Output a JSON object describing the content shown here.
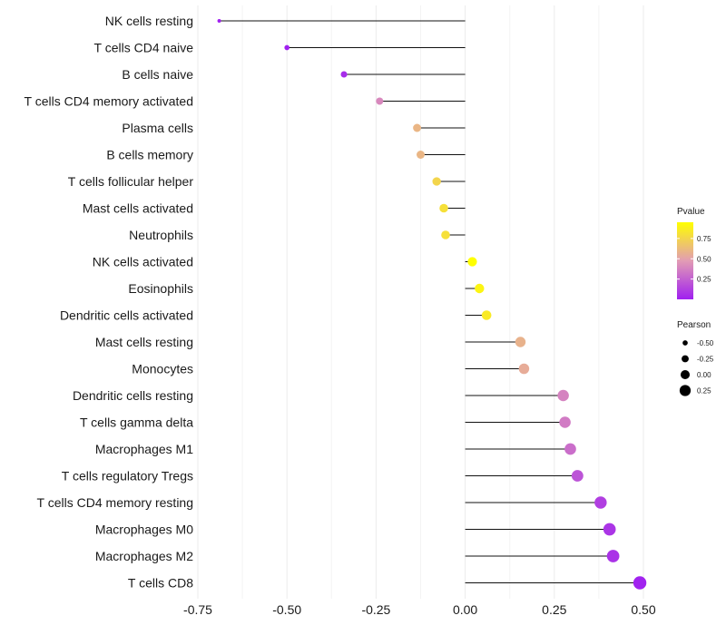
{
  "chart_data": {
    "type": "lollipop",
    "categories": [
      "NK cells resting",
      "T cells CD4 naive",
      "B cells naive",
      "T cells CD4 memory activated",
      "Plasma cells",
      "B cells memory",
      "T cells follicular helper",
      "Mast cells activated",
      "Neutrophils",
      "NK cells activated",
      "Eosinophils",
      "Dendritic cells activated",
      "Mast cells resting",
      "Monocytes",
      "Dendritic cells resting",
      "T cells gamma delta",
      "Macrophages M1",
      "T cells regulatory  Tregs ",
      "T cells CD4 memory resting",
      "Macrophages M0",
      "Macrophages M2",
      "T cells CD8"
    ],
    "pearson": [
      -0.69,
      -0.5,
      -0.34,
      -0.24,
      -0.135,
      -0.125,
      -0.08,
      -0.06,
      -0.055,
      0.02,
      0.04,
      0.06,
      0.155,
      0.165,
      0.275,
      0.28,
      0.295,
      0.315,
      0.38,
      0.405,
      0.415,
      0.49
    ],
    "pvalue": [
      0.0,
      0.0,
      0.05,
      0.4,
      0.6,
      0.6,
      0.75,
      0.8,
      0.8,
      0.95,
      0.9,
      0.85,
      0.58,
      0.55,
      0.38,
      0.35,
      0.3,
      0.2,
      0.12,
      0.08,
      0.07,
      0.01
    ],
    "x_ticks": [
      "-0.75",
      "-0.50",
      "-0.25",
      "0.00",
      "0.25",
      "0.50"
    ],
    "x_tick_values": [
      -0.75,
      -0.5,
      -0.25,
      0.0,
      0.25,
      0.5
    ],
    "xlim": [
      -0.75,
      0.5
    ],
    "xlabel": "",
    "ylabel": "",
    "color_scale": {
      "low": "#a020f0",
      "mid": "#e29cb4",
      "high": "#ffff00"
    },
    "legend_color": {
      "title": "Pvalue",
      "ticks": [
        "0.75",
        "0.50",
        "0.25"
      ],
      "tick_values": [
        0.75,
        0.5,
        0.25
      ],
      "range": [
        0.0,
        0.95
      ]
    },
    "legend_size": {
      "title": "Pearson",
      "entries": [
        "-0.50",
        "-0.25",
        "0.00",
        "0.25"
      ],
      "entry_values": [
        -0.5,
        -0.25,
        0.0,
        0.25
      ]
    }
  }
}
